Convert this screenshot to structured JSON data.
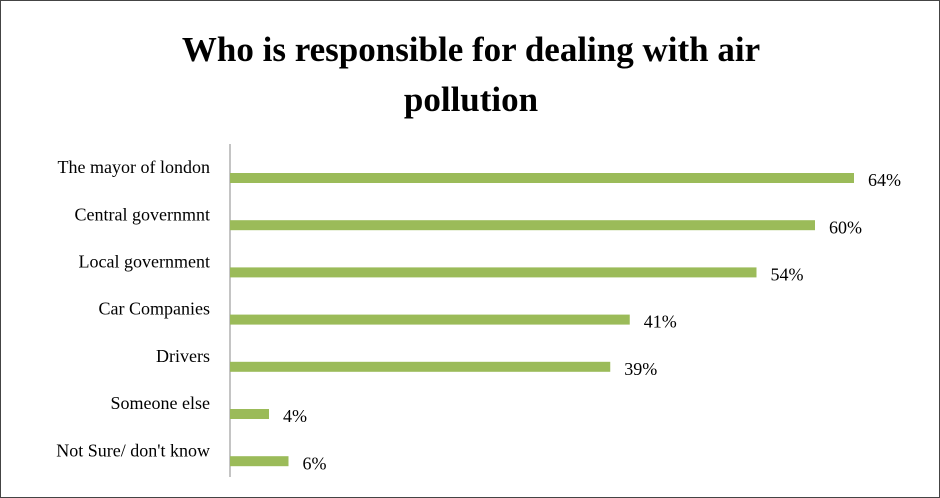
{
  "chart_data": {
    "type": "bar",
    "orientation": "horizontal",
    "title": "Who is responsible for dealing with air pollution",
    "categories": [
      "The mayor of london",
      "Central governmnt",
      "Local government",
      "Car Companies",
      "Drivers",
      "Someone else",
      "Not Sure/ don't know"
    ],
    "values": [
      64,
      60,
      54,
      41,
      39,
      4,
      6
    ],
    "value_labels": [
      "64%",
      "60%",
      "54%",
      "41%",
      "39%",
      "4%",
      "6%"
    ],
    "color": "#9bbb59"
  }
}
